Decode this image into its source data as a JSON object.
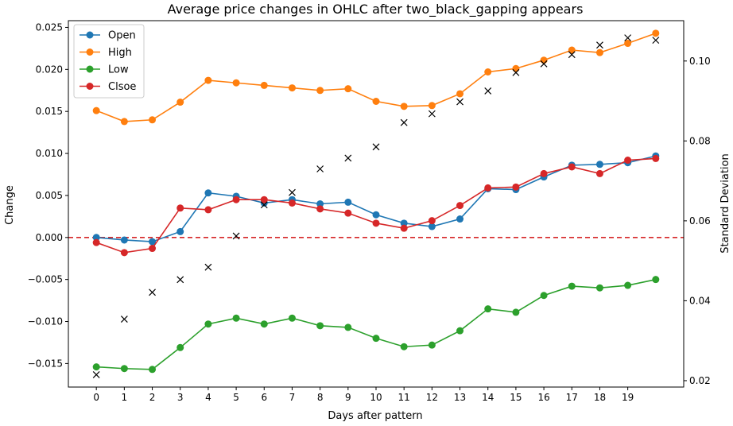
{
  "chart_data": {
    "type": "line",
    "title": "Average price changes in OHLC after two_black_gapping appears",
    "xlabel": "Days after pattern",
    "ylabel": "Change",
    "ylabel_right": "Standard Deviation",
    "x": [
      0,
      1,
      2,
      3,
      4,
      5,
      6,
      7,
      8,
      9,
      10,
      11,
      12,
      13,
      14,
      15,
      16,
      17,
      18,
      19,
      20
    ],
    "xticks": [
      "0",
      "1",
      "2",
      "3",
      "4",
      "5",
      "6",
      "7",
      "8",
      "9",
      "10",
      "11",
      "12",
      "13",
      "14",
      "15",
      "16",
      "17",
      "18",
      "19"
    ],
    "ylim": [
      -0.0178,
      0.0258
    ],
    "yticks": [
      "−0.015",
      "−0.010",
      "−0.005",
      "0.000",
      "0.005",
      "0.010",
      "0.015",
      "0.020",
      "0.025"
    ],
    "ytick_values": [
      -0.015,
      -0.01,
      -0.005,
      0.0,
      0.005,
      0.01,
      0.015,
      0.02,
      0.025
    ],
    "ylim_right": [
      0.0184,
      0.1101
    ],
    "yticks_right": [
      "0.02",
      "0.04",
      "0.06",
      "0.08",
      "0.10"
    ],
    "ytick_values_right": [
      0.02,
      0.04,
      0.06,
      0.08,
      0.1
    ],
    "legend_position": "top-left",
    "grid": false,
    "zero_line": {
      "value": 0.0,
      "color": "#d62728",
      "style": "dashed"
    },
    "series": [
      {
        "name": "Open",
        "color": "#1f77b4",
        "values": [
          0.0,
          -0.0003,
          -0.0005,
          0.0007,
          0.0053,
          0.0049,
          0.0041,
          0.0045,
          0.004,
          0.0042,
          0.0027,
          0.0017,
          0.0013,
          0.0022,
          0.0058,
          0.0057,
          0.0072,
          0.0086,
          0.0087,
          0.0089,
          0.0097
        ]
      },
      {
        "name": "High",
        "color": "#ff7f0e",
        "values": [
          0.0151,
          0.0138,
          0.014,
          0.0161,
          0.0187,
          0.0184,
          0.0181,
          0.0178,
          0.0175,
          0.0177,
          0.0162,
          0.0156,
          0.0157,
          0.0171,
          0.0197,
          0.0201,
          0.0211,
          0.0223,
          0.022,
          0.0231,
          0.0243
        ]
      },
      {
        "name": "Low",
        "color": "#2ca02c",
        "values": [
          -0.0154,
          -0.0156,
          -0.0157,
          -0.0131,
          -0.0103,
          -0.0096,
          -0.0103,
          -0.0096,
          -0.0105,
          -0.0107,
          -0.012,
          -0.013,
          -0.0128,
          -0.0111,
          -0.0085,
          -0.0089,
          -0.0069,
          -0.0058,
          -0.006,
          -0.0057,
          -0.005
        ]
      },
      {
        "name": "Clsoe",
        "color": "#d62728",
        "values": [
          -0.0006,
          -0.0018,
          -0.0013,
          0.0035,
          0.0033,
          0.0045,
          0.0045,
          0.0041,
          0.0034,
          0.0029,
          0.0017,
          0.0011,
          0.002,
          0.0038,
          0.0059,
          0.006,
          0.0076,
          0.0084,
          0.0076,
          0.0092,
          0.0094
        ]
      }
    ],
    "std_series": {
      "marker": "x",
      "color": "#000000",
      "axis": "right",
      "values": [
        0.0215,
        0.0354,
        0.0421,
        0.0453,
        0.0484,
        0.0562,
        0.064,
        0.0671,
        0.073,
        0.0757,
        0.0785,
        0.0846,
        0.0868,
        0.0898,
        0.0925,
        0.0971,
        0.0993,
        0.1016,
        0.104,
        0.1058,
        0.1052
      ]
    }
  }
}
